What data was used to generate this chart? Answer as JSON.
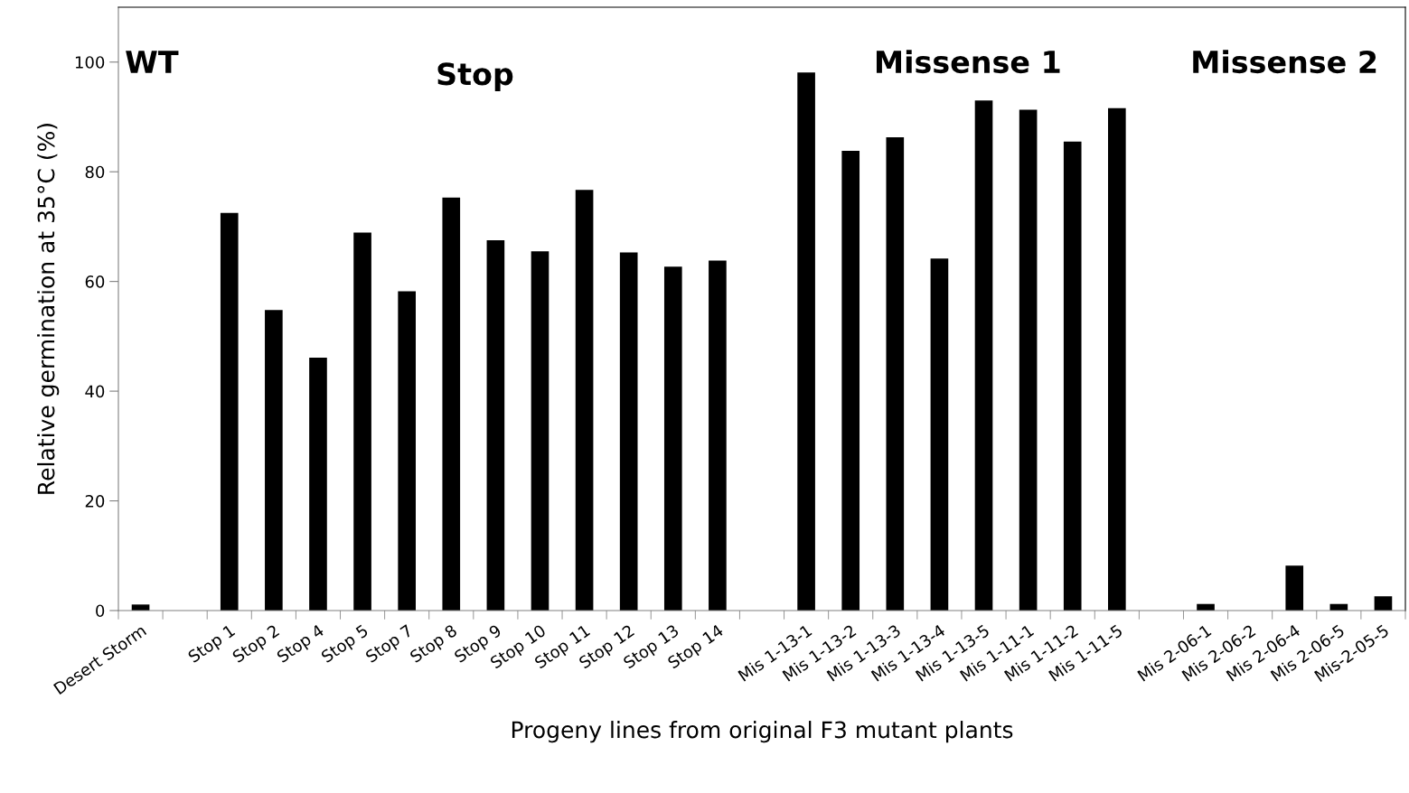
{
  "chart_data": {
    "type": "bar",
    "categories": [
      "Desert Storm",
      null,
      "Stop 1",
      "Stop 2",
      "Stop 4",
      "Stop 5",
      "Stop 7",
      "Stop 8",
      "Stop 9",
      "Stop 10",
      "Stop 11",
      "Stop 12",
      "Stop 13",
      "Stop 14",
      null,
      "Mis 1-13-1",
      "Mis 1-13-2",
      "Mis 1-13-3",
      "Mis 1-13-4",
      "Mis 1-13-5",
      "Mis 1-11-1",
      "Mis 1-11-2",
      "Mis 1-11-5",
      null,
      "Mis 2-06-1",
      "Mis 2-06-2",
      "Mis 2-06-4",
      "Mis 2-06-5",
      "Mis-2-05-5"
    ],
    "values": [
      1.1,
      null,
      72.5,
      54.8,
      46.1,
      68.9,
      58.2,
      75.3,
      67.5,
      65.5,
      76.7,
      65.3,
      62.7,
      63.8,
      null,
      98.1,
      83.8,
      86.3,
      64.2,
      93.0,
      91.3,
      85.5,
      91.6,
      null,
      1.2,
      0,
      8.2,
      1.2,
      2.6
    ],
    "color": "#000000",
    "xlabel": "Progeny lines from original F3 mutant plants",
    "ylabel": "Relative germination at 35°C (%)",
    "ylim": [
      0,
      110
    ],
    "yticks": [
      0,
      20,
      40,
      60,
      80,
      100
    ],
    "annotations": [
      "WT",
      "Stop",
      "Missense 1",
      "Missense 2"
    ],
    "grid": false,
    "legend": false
  }
}
